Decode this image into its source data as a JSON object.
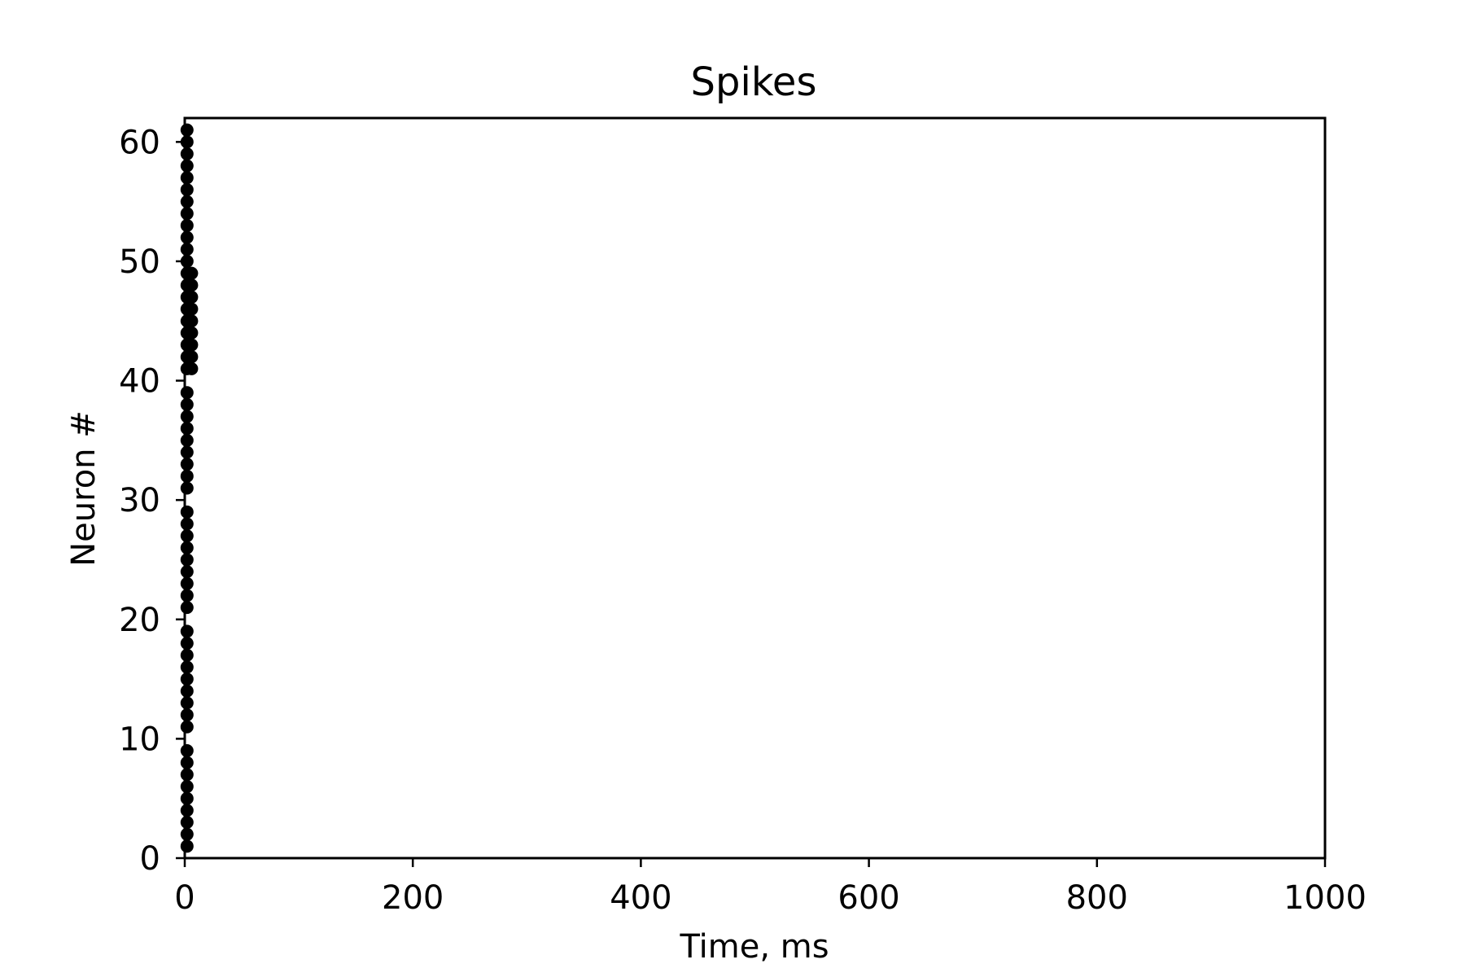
{
  "chart_data": {
    "type": "scatter",
    "title": "Spikes",
    "xlabel": "Time, ms",
    "ylabel": "Neuron #",
    "xlim": [
      0,
      1000
    ],
    "ylim": [
      0,
      62
    ],
    "xticks": [
      0,
      200,
      400,
      600,
      800,
      1000
    ],
    "yticks": [
      0,
      10,
      20,
      30,
      40,
      50,
      60
    ],
    "grid": false,
    "legend": "none",
    "marker_color": "#000000",
    "series": [
      {
        "points": [
          [
            2,
            1
          ],
          [
            2,
            2
          ],
          [
            2,
            3
          ],
          [
            2,
            4
          ],
          [
            2,
            5
          ],
          [
            2,
            6
          ],
          [
            2,
            7
          ],
          [
            2,
            8
          ],
          [
            2,
            9
          ],
          [
            2,
            11
          ],
          [
            2,
            12
          ],
          [
            2,
            13
          ],
          [
            2,
            14
          ],
          [
            2,
            15
          ],
          [
            2,
            16
          ],
          [
            2,
            17
          ],
          [
            2,
            18
          ],
          [
            2,
            19
          ],
          [
            2,
            21
          ],
          [
            2,
            22
          ],
          [
            2,
            23
          ],
          [
            2,
            24
          ],
          [
            2,
            25
          ],
          [
            2,
            26
          ],
          [
            2,
            27
          ],
          [
            2,
            28
          ],
          [
            2,
            29
          ],
          [
            2,
            31
          ],
          [
            2,
            32
          ],
          [
            2,
            33
          ],
          [
            2,
            34
          ],
          [
            2,
            35
          ],
          [
            2,
            36
          ],
          [
            2,
            37
          ],
          [
            2,
            38
          ],
          [
            2,
            39
          ],
          [
            2,
            41
          ],
          [
            2,
            42
          ],
          [
            2,
            43
          ],
          [
            2,
            44
          ],
          [
            2,
            45
          ],
          [
            2,
            46
          ],
          [
            2,
            47
          ],
          [
            2,
            48
          ],
          [
            2,
            49
          ],
          [
            6,
            41
          ],
          [
            6,
            42
          ],
          [
            6,
            43
          ],
          [
            6,
            44
          ],
          [
            6,
            45
          ],
          [
            6,
            46
          ],
          [
            6,
            47
          ],
          [
            6,
            48
          ],
          [
            6,
            49
          ],
          [
            2,
            50
          ],
          [
            2,
            51
          ],
          [
            2,
            52
          ],
          [
            2,
            53
          ],
          [
            2,
            54
          ],
          [
            2,
            55
          ],
          [
            2,
            56
          ],
          [
            2,
            57
          ],
          [
            2,
            58
          ],
          [
            2,
            59
          ],
          [
            2,
            60
          ],
          [
            2,
            61
          ]
        ]
      }
    ]
  }
}
